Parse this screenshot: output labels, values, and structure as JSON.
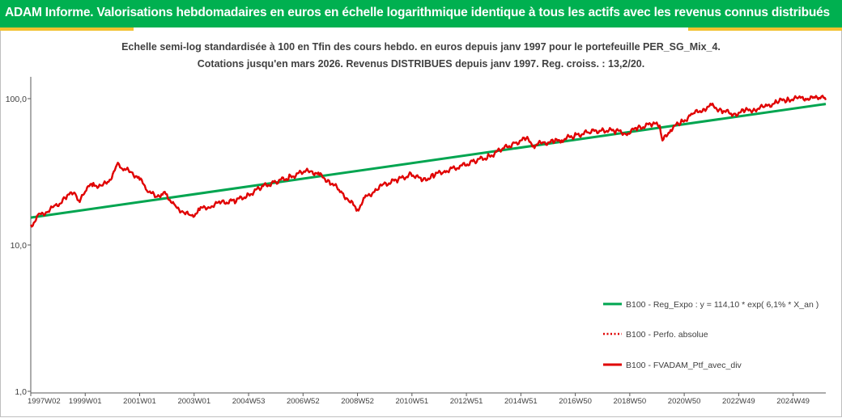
{
  "header": {
    "title": "ADAM Informe. Valorisations hebdomadaires en euros en échelle logarithmique identique à tous les actifs avec les revenus connus distribués",
    "bg_color": "#00b050",
    "accent_color": "#f2c12e"
  },
  "subtitle_line1": "Echelle semi-log standardisée à 100 en Tfin des cours hebdo. en euros depuis janv 1997 pour le portefeuille PER_SG_Mix_4.",
  "subtitle_line2": "Cotations jusqu'en mars 2026. Revenus DISTRIBUES depuis janv 1997. Reg. croiss. : 13,2/20.",
  "chart_data": {
    "type": "line",
    "y_scale": "log",
    "ylim": [
      1,
      150
    ],
    "y_ticks": [
      "100,0",
      "10,0",
      "1,0"
    ],
    "y_tick_values": [
      100,
      10,
      1
    ],
    "xlim": [
      1997.0,
      2026.2
    ],
    "x_ticks": [
      "1997W02",
      "1999W01",
      "2001W01",
      "2003W01",
      "2004W53",
      "2006W52",
      "2008W52",
      "2010W51",
      "2012W51",
      "2014W51",
      "2016W50",
      "2018W50",
      "2020W50",
      "2022W49",
      "2024W49"
    ],
    "x_tick_values": [
      1997.0,
      1999.0,
      2001.0,
      2003.0,
      2005.0,
      2007.0,
      2009.0,
      2011.0,
      2013.0,
      2015.0,
      2017.0,
      2019.0,
      2021.0,
      2023.0,
      2025.0
    ],
    "legend_position": "bottom-right",
    "series": [
      {
        "name": "B100 - Reg_Expo : y = 114,10 * exp( 6,1% * X_an )",
        "color": "#00a550",
        "style": "solid",
        "x": [
          1997.0,
          2026.2
        ],
        "y": [
          15.4,
          92.0
        ]
      },
      {
        "name": "B100 - Perfo. absolue",
        "color": "#e00000",
        "style": "dotted",
        "x": [],
        "y": []
      },
      {
        "name": "B100 - FVADAM_Ptf_avec_div",
        "color": "#e00000",
        "style": "solid",
        "x": [
          1997.0,
          1997.3,
          1997.6,
          1997.9,
          1998.3,
          1998.6,
          1998.8,
          1999.0,
          1999.3,
          1999.6,
          1999.9,
          2000.2,
          2000.4,
          2000.7,
          2001.0,
          2001.3,
          2001.6,
          2001.8,
          2002.0,
          2002.3,
          2002.6,
          2002.9,
          2003.2,
          2003.6,
          2004.0,
          2004.5,
          2005.0,
          2005.5,
          2006.0,
          2006.5,
          2007.0,
          2007.3,
          2007.6,
          2008.0,
          2008.4,
          2008.7,
          2009.0,
          2009.3,
          2009.7,
          2010.0,
          2010.5,
          2011.0,
          2011.4,
          2011.8,
          2012.2,
          2012.8,
          2013.3,
          2013.8,
          2014.3,
          2014.8,
          2015.2,
          2015.5,
          2015.8,
          2016.2,
          2016.5,
          2017.0,
          2017.5,
          2018.0,
          2018.5,
          2018.9,
          2019.3,
          2019.8,
          2020.1,
          2020.2,
          2020.5,
          2020.9,
          2021.3,
          2021.7,
          2022.0,
          2022.4,
          2022.8,
          2023.2,
          2023.6,
          2024.0,
          2024.4,
          2024.8,
          2025.2,
          2025.5,
          2025.8,
          2026.0,
          2026.2
        ],
        "y": [
          13.5,
          15.8,
          17.0,
          18.3,
          21.0,
          23.5,
          19.5,
          24.0,
          26.0,
          25.0,
          28.0,
          35.0,
          33.0,
          31.5,
          28.0,
          24.0,
          21.0,
          22.5,
          22.0,
          18.0,
          17.0,
          15.5,
          17.5,
          18.5,
          19.5,
          20.0,
          22.0,
          25.0,
          27.0,
          29.0,
          31.5,
          32.0,
          30.0,
          27.0,
          23.0,
          20.0,
          17.5,
          21.0,
          24.0,
          26.0,
          28.0,
          30.5,
          27.5,
          30.0,
          32.0,
          34.5,
          37.5,
          40.0,
          45.0,
          50.0,
          53.0,
          48.0,
          50.0,
          50.5,
          52.5,
          56.0,
          59.0,
          61.0,
          60.0,
          58.0,
          63.0,
          67.0,
          66.0,
          51.0,
          62.0,
          69.0,
          78.0,
          85.0,
          89.0,
          83.0,
          78.0,
          82.0,
          85.0,
          88.0,
          95.0,
          99.0,
          100.0,
          101.0,
          100.0,
          104.0,
          98.0
        ]
      }
    ]
  }
}
